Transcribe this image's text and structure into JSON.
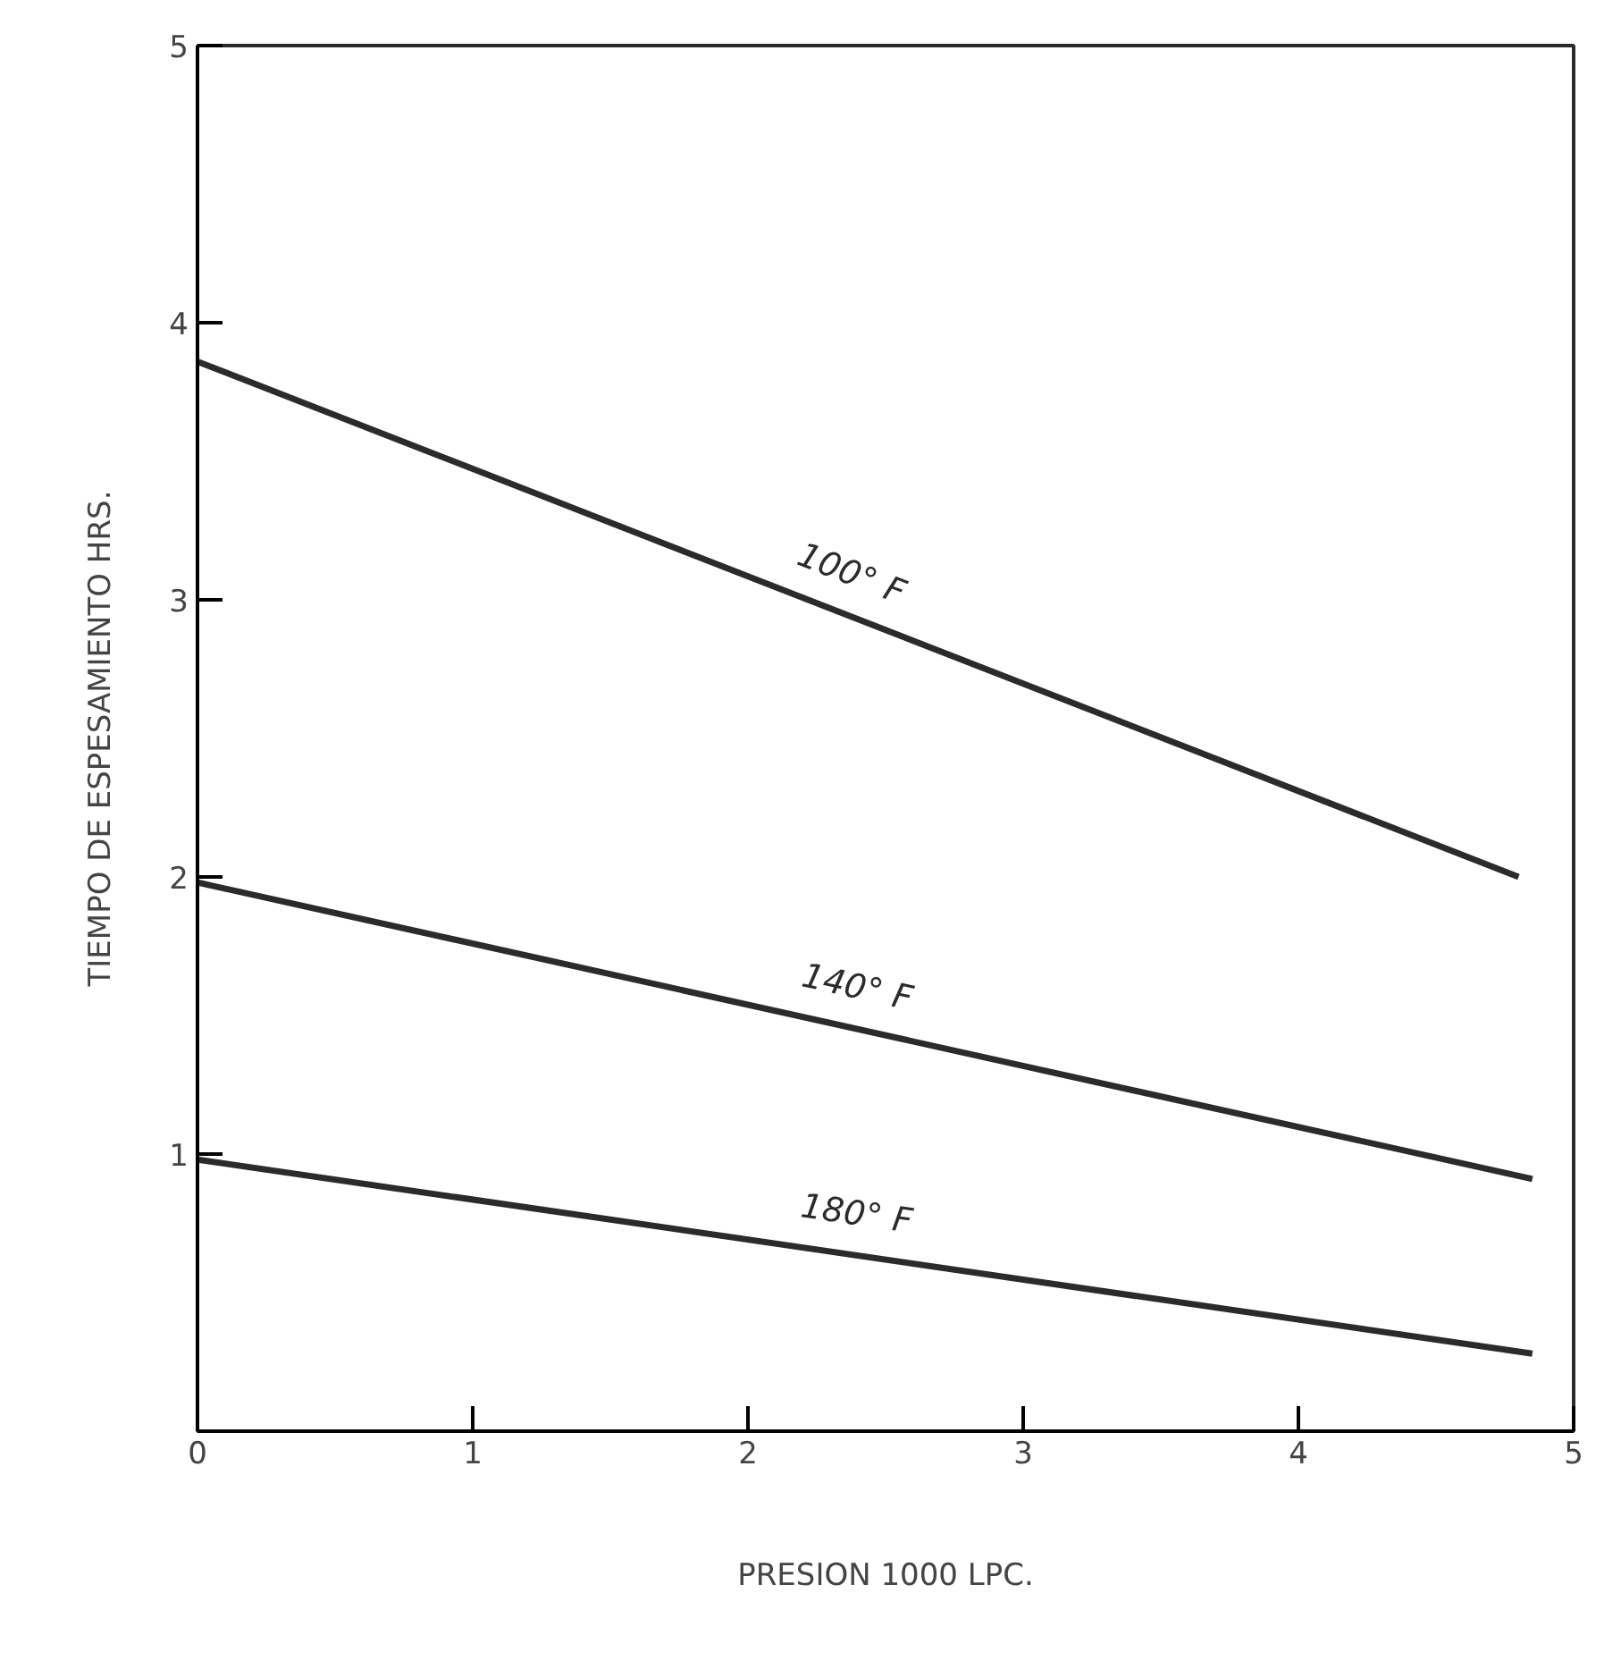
{
  "chart_data": {
    "type": "line",
    "xlabel": "PRESION 1000 LPC.",
    "ylabel": "TIEMPO DE ESPESAMIENTO HRS.",
    "xlim": [
      0,
      5
    ],
    "ylim": [
      0,
      5
    ],
    "xticks": [
      0,
      1,
      2,
      3,
      4,
      5
    ],
    "yticks": [
      1,
      2,
      3,
      4,
      5
    ],
    "grid": false,
    "marker": "none",
    "line_style": "solid",
    "series": [
      {
        "name": "100° F",
        "color": "#2b2b2b",
        "x": [
          0,
          4.8
        ],
        "values": [
          3.86,
          2.0
        ]
      },
      {
        "name": "140° F",
        "color": "#2b2b2b",
        "x": [
          0,
          4.85
        ],
        "values": [
          1.98,
          0.91
        ]
      },
      {
        "name": "180° F",
        "color": "#2b2b2b",
        "x": [
          0,
          4.85
        ],
        "values": [
          0.98,
          0.28
        ]
      }
    ]
  }
}
